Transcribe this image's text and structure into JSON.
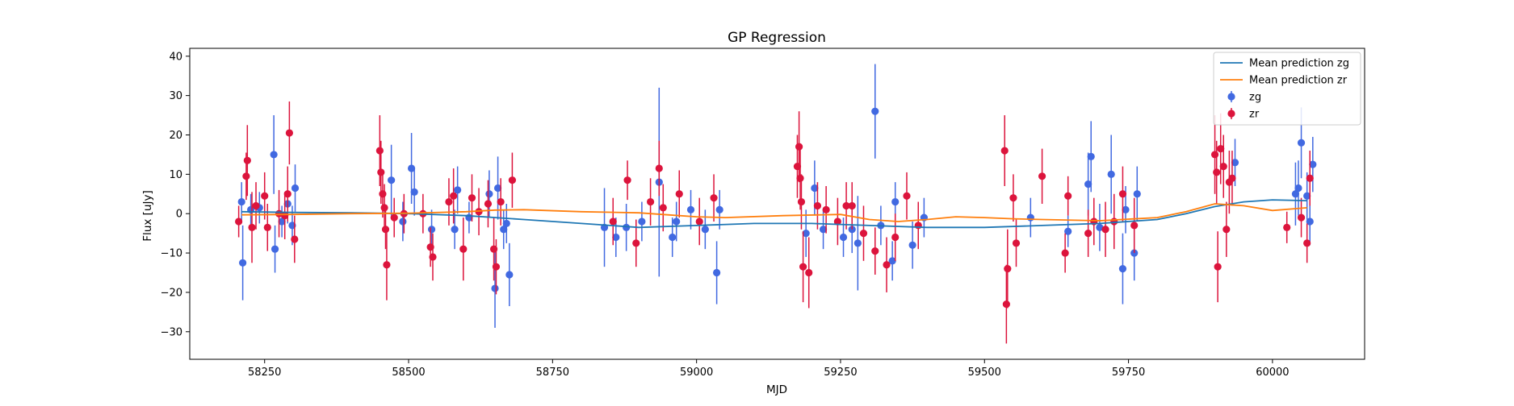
{
  "chart_data": {
    "type": "scatter",
    "title": "GP Regression",
    "xlabel": "MJD",
    "ylabel": "Flux [uJy]",
    "xlim": [
      58120,
      60160
    ],
    "ylim": [
      -37,
      42
    ],
    "xticks": [
      58250,
      58500,
      58750,
      59000,
      59250,
      59500,
      59750,
      60000
    ],
    "yticks": [
      -30,
      -20,
      -10,
      0,
      10,
      20,
      30,
      40
    ],
    "grid": false,
    "legend_position": "top-right",
    "legend": [
      {
        "label": "Mean prediction zg",
        "kind": "line",
        "color": "#1f77b4"
      },
      {
        "label": "Mean prediction zr",
        "kind": "line",
        "color": "#ff7f0e"
      },
      {
        "label": "zg",
        "kind": "errorbar",
        "color": "#4169e1"
      },
      {
        "label": "zr",
        "kind": "errorbar",
        "color": "#dc143c"
      }
    ],
    "lines": [
      {
        "name": "Mean prediction zg",
        "color": "#1f77b4",
        "x": [
          58210,
          58300,
          58400,
          58500,
          58600,
          58700,
          58800,
          58900,
          59000,
          59100,
          59200,
          59300,
          59400,
          59500,
          59600,
          59700,
          59800,
          59850,
          59900,
          59950,
          60000,
          60060
        ],
        "y": [
          0.5,
          0.3,
          0.2,
          0.0,
          -0.5,
          -1.5,
          -2.5,
          -3.5,
          -3.0,
          -2.5,
          -2.5,
          -3.0,
          -3.5,
          -3.5,
          -3.0,
          -2.5,
          -1.5,
          0.0,
          1.8,
          3.0,
          3.5,
          3.3
        ]
      },
      {
        "name": "Mean prediction zr",
        "color": "#ff7f0e",
        "x": [
          58210,
          58300,
          58400,
          58500,
          58600,
          58650,
          58700,
          58800,
          58900,
          58950,
          59000,
          59050,
          59150,
          59250,
          59300,
          59350,
          59400,
          59450,
          59500,
          59550,
          59600,
          59700,
          59800,
          59850,
          59900,
          59950,
          60000,
          60060
        ],
        "y": [
          -0.3,
          -0.2,
          0.0,
          0.1,
          0.5,
          0.9,
          1.0,
          0.5,
          0.2,
          -0.3,
          -0.8,
          -1.0,
          -0.5,
          -0.2,
          -1.5,
          -2.0,
          -1.5,
          -0.8,
          -1.0,
          -1.3,
          -1.5,
          -1.8,
          -1.0,
          0.5,
          2.5,
          2.0,
          0.8,
          1.5
        ]
      }
    ],
    "series": [
      {
        "name": "zg",
        "color": "#4169e1",
        "points": [
          [
            58210,
            3,
            5
          ],
          [
            58212,
            -12.5,
            9.5
          ],
          [
            58226,
            1,
            4
          ],
          [
            58241,
            1.5,
            4
          ],
          [
            58266,
            15,
            10
          ],
          [
            58268,
            -9,
            6
          ],
          [
            58280,
            -2,
            4
          ],
          [
            58290,
            2.5,
            5
          ],
          [
            58303,
            6.5,
            6
          ],
          [
            58298,
            -3,
            5
          ],
          [
            58470,
            8.5,
            9
          ],
          [
            58490,
            -2,
            5
          ],
          [
            58505,
            11.5,
            9
          ],
          [
            58510,
            5.5,
            6
          ],
          [
            58540,
            -4,
            5
          ],
          [
            58585,
            6,
            6
          ],
          [
            58580,
            -4,
            5
          ],
          [
            58605,
            -1,
            4
          ],
          [
            58640,
            5,
            6
          ],
          [
            58655,
            6.5,
            8
          ],
          [
            58650,
            -19,
            10
          ],
          [
            58665,
            -4,
            5
          ],
          [
            58670,
            -2.5,
            5
          ],
          [
            58675,
            -15.5,
            8
          ],
          [
            58840,
            -3.5,
            10
          ],
          [
            58860,
            -6,
            5
          ],
          [
            58878,
            -3.5,
            6
          ],
          [
            58905,
            -2,
            5
          ],
          [
            58935,
            8,
            24
          ],
          [
            58958,
            -6,
            5
          ],
          [
            58965,
            -2,
            5
          ],
          [
            58990,
            1,
            5
          ],
          [
            59015,
            -4,
            5
          ],
          [
            59035,
            -15,
            8
          ],
          [
            59040,
            1,
            5
          ],
          [
            59190,
            -5,
            6
          ],
          [
            59205,
            6.5,
            7
          ],
          [
            59220,
            -4,
            5
          ],
          [
            59255,
            -6,
            5
          ],
          [
            59270,
            -4,
            6
          ],
          [
            59280,
            -7.5,
            12
          ],
          [
            59310,
            26,
            12
          ],
          [
            59320,
            -3,
            5
          ],
          [
            59340,
            -12,
            5
          ],
          [
            59345,
            3,
            5
          ],
          [
            59375,
            -8,
            6
          ],
          [
            59395,
            -1,
            5
          ],
          [
            59580,
            -1,
            5
          ],
          [
            59645,
            -4.5,
            4
          ],
          [
            59680,
            7.5,
            8
          ],
          [
            59685,
            14.5,
            9
          ],
          [
            59700,
            -3.5,
            6
          ],
          [
            59720,
            10,
            10
          ],
          [
            59740,
            -14,
            9
          ],
          [
            59745,
            1,
            6
          ],
          [
            59760,
            -10,
            7
          ],
          [
            59765,
            5,
            7
          ],
          [
            60040,
            5,
            8
          ],
          [
            60045,
            6.5,
            7
          ],
          [
            60050,
            18,
            9
          ],
          [
            60060,
            4.5,
            6
          ],
          [
            60065,
            -2,
            6
          ],
          [
            60070,
            12.5,
            7
          ],
          [
            59935,
            13,
            6
          ]
        ]
      },
      {
        "name": "zr",
        "color": "#dc143c",
        "points": [
          [
            58205,
            -2,
            4
          ],
          [
            58218,
            9.5,
            6
          ],
          [
            58220,
            13.5,
            9
          ],
          [
            58228,
            -3.5,
            9
          ],
          [
            58235,
            2,
            6
          ],
          [
            58250,
            4.5,
            6
          ],
          [
            58255,
            -3.5,
            6
          ],
          [
            58275,
            0,
            6
          ],
          [
            58285,
            -0.5,
            6
          ],
          [
            58290,
            5,
            7
          ],
          [
            58293,
            20.5,
            8
          ],
          [
            58302,
            -6.5,
            6
          ],
          [
            58450,
            16,
            9
          ],
          [
            58452,
            10.5,
            8
          ],
          [
            58455,
            5,
            6
          ],
          [
            58458,
            1.5,
            6
          ],
          [
            58460,
            -4,
            5
          ],
          [
            58462,
            -13,
            9
          ],
          [
            58475,
            -1,
            5
          ],
          [
            58492,
            0,
            5
          ],
          [
            58525,
            0,
            5
          ],
          [
            58538,
            -8.5,
            5
          ],
          [
            58542,
            -11,
            6
          ],
          [
            58570,
            3,
            6
          ],
          [
            58578,
            4.5,
            7
          ],
          [
            58595,
            -9,
            8
          ],
          [
            58610,
            4,
            6
          ],
          [
            58622,
            0.5,
            6
          ],
          [
            58638,
            2.5,
            6
          ],
          [
            58648,
            -9,
            8
          ],
          [
            58652,
            -13.5,
            7
          ],
          [
            58660,
            3,
            6
          ],
          [
            58680,
            8.5,
            7
          ],
          [
            58855,
            -2,
            6
          ],
          [
            58880,
            8.5,
            5
          ],
          [
            58895,
            -7.5,
            6
          ],
          [
            58920,
            3,
            6
          ],
          [
            58935,
            11.5,
            7
          ],
          [
            58942,
            1.5,
            6
          ],
          [
            58970,
            5,
            6
          ],
          [
            59005,
            -2,
            6
          ],
          [
            59030,
            4,
            6
          ],
          [
            59175,
            12,
            8
          ],
          [
            59178,
            17,
            9
          ],
          [
            59180,
            9,
            8
          ],
          [
            59182,
            3,
            7
          ],
          [
            59185,
            -13.5,
            9
          ],
          [
            59195,
            -15,
            9
          ],
          [
            59210,
            2,
            6
          ],
          [
            59225,
            1,
            6
          ],
          [
            59245,
            -2,
            6
          ],
          [
            59260,
            2,
            6
          ],
          [
            59270,
            2,
            6
          ],
          [
            59290,
            -5,
            7
          ],
          [
            59310,
            -9.5,
            6
          ],
          [
            59330,
            -13,
            7
          ],
          [
            59345,
            -6,
            6
          ],
          [
            59365,
            4.5,
            6
          ],
          [
            59385,
            -3,
            6
          ],
          [
            59535,
            16,
            9
          ],
          [
            59538,
            -23,
            10
          ],
          [
            59540,
            -14,
            10
          ],
          [
            59550,
            4,
            6
          ],
          [
            59555,
            -7.5,
            6
          ],
          [
            59600,
            9.5,
            7
          ],
          [
            59640,
            -10,
            5
          ],
          [
            59645,
            4.5,
            5
          ],
          [
            59680,
            -5,
            6
          ],
          [
            59690,
            -2,
            6
          ],
          [
            59710,
            -4,
            7
          ],
          [
            59725,
            -2,
            7
          ],
          [
            59740,
            5,
            7
          ],
          [
            59760,
            -3,
            7
          ],
          [
            59900,
            15,
            10
          ],
          [
            59903,
            10.5,
            8
          ],
          [
            59905,
            -13.5,
            9
          ],
          [
            59910,
            16.5,
            9
          ],
          [
            59915,
            12,
            8
          ],
          [
            59920,
            -4,
            7
          ],
          [
            59925,
            8,
            8
          ],
          [
            59930,
            9,
            7
          ],
          [
            60025,
            -3.5,
            4
          ],
          [
            60050,
            -1,
            5
          ],
          [
            60060,
            -7.5,
            5
          ],
          [
            60065,
            9,
            7
          ]
        ]
      }
    ]
  }
}
